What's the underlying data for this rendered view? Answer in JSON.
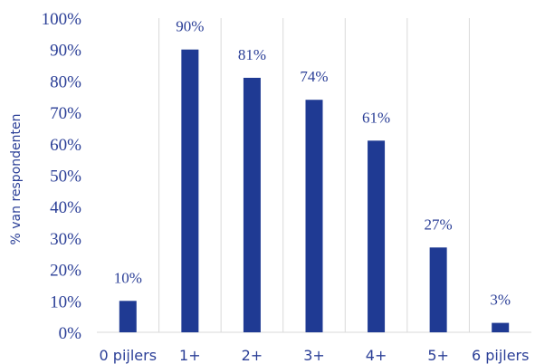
{
  "chart_data": {
    "type": "bar",
    "categories": [
      "0 pijlers",
      "1+",
      "2+",
      "3+",
      "4+",
      "5+",
      "6 pijlers"
    ],
    "values": [
      10,
      90,
      81,
      74,
      61,
      27,
      3
    ],
    "data_labels": [
      "10%",
      "90%",
      "81%",
      "74%",
      "61%",
      "27%",
      "3%"
    ],
    "ylabel": "% van respondenten",
    "xlabel": "",
    "ylim": [
      0,
      100
    ],
    "yticks": [
      0,
      10,
      20,
      30,
      40,
      50,
      60,
      70,
      80,
      90,
      100
    ],
    "ytick_labels": [
      "0%",
      "10%",
      "20%",
      "30%",
      "40%",
      "50%",
      "60%",
      "70%",
      "80%",
      "90%",
      "100%"
    ],
    "grid": "vertical category separators",
    "bar_color": "#1f3a93",
    "text_color": "#2b3f97"
  }
}
